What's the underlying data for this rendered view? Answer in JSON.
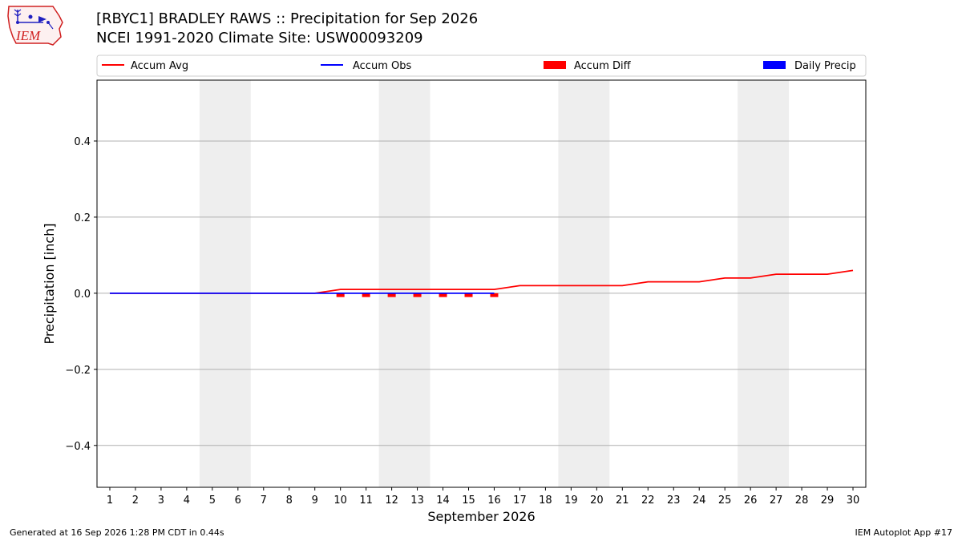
{
  "header": {
    "title": "[RBYC1] BRADLEY RAWS :: Precipitation for Sep 2026",
    "subtitle": "NCEI 1991-2020 Climate Site: USW00093209",
    "logo_text": "IEM"
  },
  "footer": {
    "left": "Generated at 16 Sep 2026 1:28 PM CDT in 0.44s",
    "right": "IEM Autoplot App #17"
  },
  "colors": {
    "accum_avg": "#ff0000",
    "accum_obs": "#0000ff",
    "accum_diff": "#ff0000",
    "daily_precip": "#0000ff",
    "weekend_shade": "#eeeeee",
    "grid": "#b0b0b0"
  },
  "chart_data": {
    "type": "line",
    "title": "[RBYC1] BRADLEY RAWS :: Precipitation for Sep 2026",
    "xlabel": "September 2026",
    "ylabel": "Precipitation [inch]",
    "xlim": [
      0.5,
      30.5
    ],
    "ylim": [
      -0.51,
      0.56
    ],
    "yticks": [
      -0.4,
      -0.2,
      0.0,
      0.2,
      0.4
    ],
    "ytick_labels": [
      "−0.4",
      "−0.2",
      "0.0",
      "0.2",
      "0.4"
    ],
    "x": [
      1,
      2,
      3,
      4,
      5,
      6,
      7,
      8,
      9,
      10,
      11,
      12,
      13,
      14,
      15,
      16,
      17,
      18,
      19,
      20,
      21,
      22,
      23,
      24,
      25,
      26,
      27,
      28,
      29,
      30
    ],
    "xtick_labels": [
      "1",
      "2",
      "3",
      "4",
      "5",
      "6",
      "7",
      "8",
      "9",
      "10",
      "11",
      "12",
      "13",
      "14",
      "15",
      "16",
      "17",
      "18",
      "19",
      "20",
      "21",
      "22",
      "23",
      "24",
      "25",
      "26",
      "27",
      "28",
      "29",
      "30"
    ],
    "grid": "horizontal",
    "legend_placement": "top",
    "legend": [
      "Accum Avg",
      "Accum Obs",
      "Accum Diff",
      "Daily Precip"
    ],
    "weekend_shading": [
      [
        5,
        6
      ],
      [
        12,
        13
      ],
      [
        19,
        20
      ],
      [
        26,
        27
      ]
    ],
    "series": [
      {
        "name": "Accum Avg",
        "kind": "line",
        "x": [
          1,
          2,
          3,
          4,
          5,
          6,
          7,
          8,
          9,
          10,
          11,
          12,
          13,
          14,
          15,
          16,
          17,
          18,
          19,
          20,
          21,
          22,
          23,
          24,
          25,
          26,
          27,
          28,
          29,
          30
        ],
        "values": [
          0,
          0,
          0,
          0,
          0,
          0,
          0,
          0,
          0,
          0.01,
          0.01,
          0.01,
          0.01,
          0.01,
          0.01,
          0.01,
          0.02,
          0.02,
          0.02,
          0.02,
          0.02,
          0.03,
          0.03,
          0.03,
          0.04,
          0.04,
          0.05,
          0.05,
          0.05,
          0.06
        ]
      },
      {
        "name": "Accum Obs",
        "kind": "line",
        "x": [
          1,
          2,
          3,
          4,
          5,
          6,
          7,
          8,
          9,
          10,
          11,
          12,
          13,
          14,
          15,
          16
        ],
        "values": [
          0,
          0,
          0,
          0,
          0,
          0,
          0,
          0,
          0,
          0,
          0,
          0,
          0,
          0,
          0,
          0
        ]
      },
      {
        "name": "Accum Diff",
        "kind": "bar",
        "x": [
          1,
          2,
          3,
          4,
          5,
          6,
          7,
          8,
          9,
          10,
          11,
          12,
          13,
          14,
          15,
          16
        ],
        "values": [
          0,
          0,
          0,
          0,
          0,
          0,
          0,
          0,
          0,
          -0.01,
          -0.01,
          -0.01,
          -0.01,
          -0.01,
          -0.01,
          -0.01
        ]
      },
      {
        "name": "Daily Precip",
        "kind": "bar",
        "x": [
          1,
          2,
          3,
          4,
          5,
          6,
          7,
          8,
          9,
          10,
          11,
          12,
          13,
          14,
          15,
          16
        ],
        "values": [
          0,
          0,
          0,
          0,
          0,
          0,
          0,
          0,
          0,
          0,
          0,
          0,
          0,
          0,
          0,
          0
        ]
      }
    ]
  }
}
